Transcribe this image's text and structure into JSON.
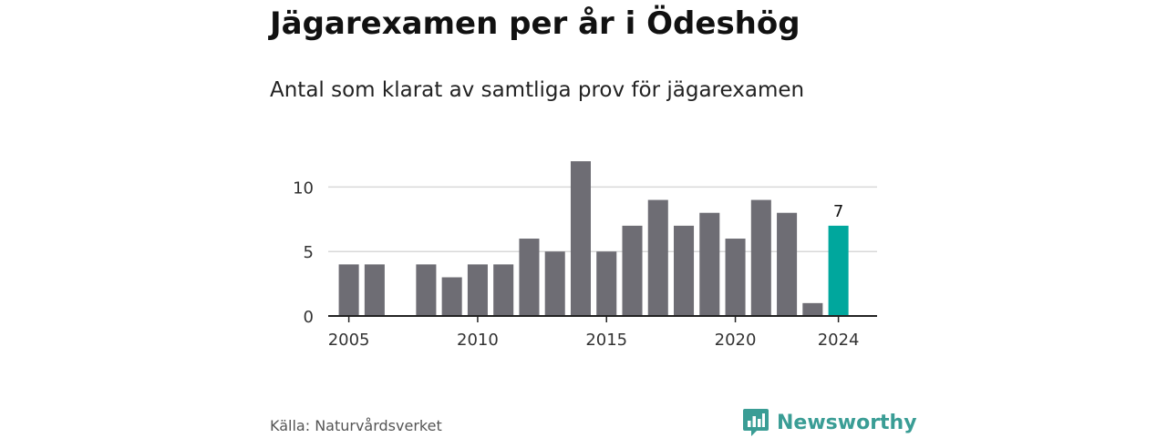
{
  "title": "Jägarexamen per år i Ödeshög",
  "subtitle": "Antal som klarat av samtliga prov för jägarexamen",
  "source": "Källa: Naturvårdsverket",
  "brand": {
    "name": "Newsworthy",
    "icon": "newsworthy-logo-icon",
    "color": "#3a9d95"
  },
  "colors": {
    "bar": "#6e6d74",
    "highlight": "#00a79d",
    "grid": "#d9d9d9",
    "axis": "#222222"
  },
  "chart_data": {
    "type": "bar",
    "x": [
      2005,
      2006,
      2008,
      2009,
      2010,
      2011,
      2012,
      2013,
      2014,
      2015,
      2016,
      2017,
      2018,
      2019,
      2020,
      2021,
      2022,
      2023,
      2024
    ],
    "values": [
      4,
      4,
      4,
      3,
      4,
      4,
      6,
      5,
      12,
      5,
      7,
      9,
      7,
      8,
      6,
      9,
      8,
      1,
      7
    ],
    "highlight_x": 2024,
    "data_labels": [
      {
        "x": 2024,
        "label": "7"
      }
    ],
    "xticks": [
      "2005",
      "2010",
      "2015",
      "2020",
      "2024"
    ],
    "yticks": [
      "0",
      "5",
      "10"
    ],
    "xlim": [
      2004.2,
      2025.5
    ],
    "ylim": [
      0,
      12.5
    ],
    "grid": true,
    "xlabel": "",
    "ylabel": ""
  }
}
